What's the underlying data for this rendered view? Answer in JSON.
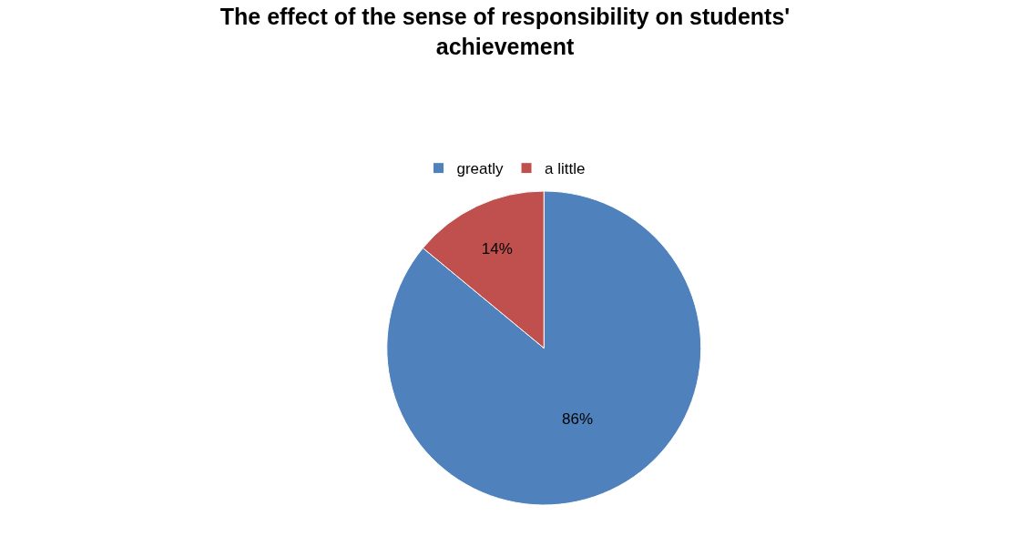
{
  "chart_data": {
    "type": "pie",
    "title": "The effect of the sense of responsibility on students' achievement",
    "categories": [
      "greatly",
      "a little"
    ],
    "values": [
      86,
      14
    ],
    "colors": [
      "#4f81bd",
      "#c0504d"
    ],
    "value_labels": [
      "86%",
      "14%"
    ],
    "legend": "top"
  }
}
